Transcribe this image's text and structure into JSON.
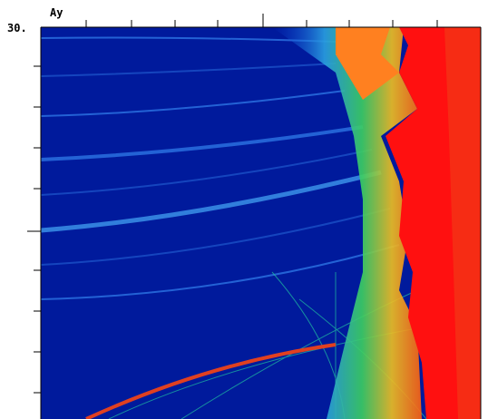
{
  "y_axis": {
    "label": "Ay",
    "top_tick_label": "30."
  }
}
